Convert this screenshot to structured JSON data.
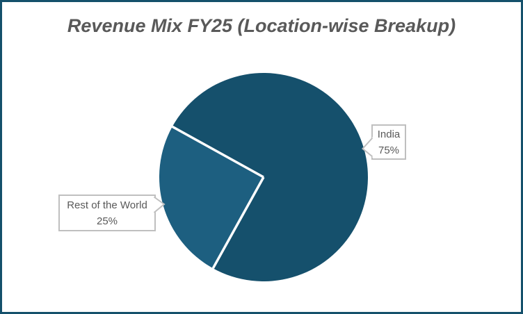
{
  "chart_data": {
    "type": "pie",
    "title": "Revenue Mix FY25 (Location-wise Breakup)",
    "unit": "percent",
    "direction": "clockwise",
    "rotation_deg": 299,
    "slices": [
      {
        "label": "India",
        "value": 75,
        "display": "75%",
        "color": "#15506C"
      },
      {
        "label": "Rest of the World",
        "value": 25,
        "display": "25%",
        "color": "#1D5F80"
      }
    ],
    "legend": "none",
    "data_labels": "callout boxes showing category name and percentage"
  },
  "colors": {
    "frame_border": "#14506B",
    "background": "#FFFFFF",
    "title_text": "#595959",
    "callout_text": "#595959",
    "callout_border": "#BFBFBF",
    "slice_separator": "#FFFFFF"
  }
}
